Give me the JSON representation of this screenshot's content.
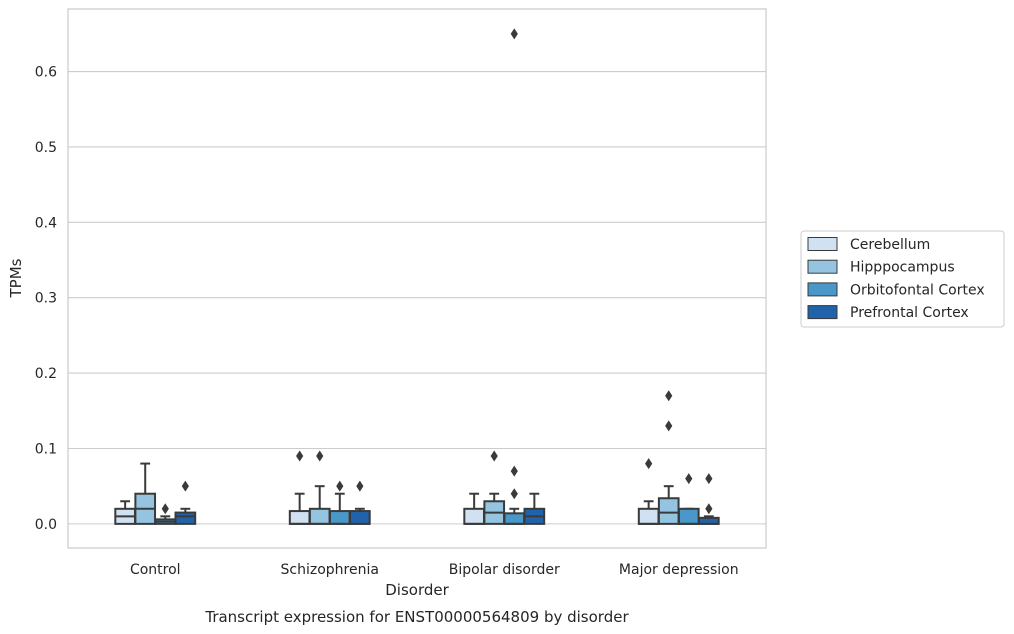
{
  "chart_data": {
    "type": "box",
    "xlabel": "Disorder",
    "ylabel": "TPMs",
    "caption": "Transcript expression for ENST00000564809 by disorder",
    "categories": [
      "Control",
      "Schizophrenia",
      "Bipolar disorder",
      "Major depression"
    ],
    "ylim": [
      -0.032,
      0.683
    ],
    "yticks": [
      0.0,
      0.1,
      0.2,
      0.3,
      0.4,
      0.5,
      0.6
    ],
    "ytick_labels": [
      "0.0",
      "0.1",
      "0.2",
      "0.3",
      "0.4",
      "0.5",
      "0.6"
    ],
    "grid": "horizontal",
    "legend_position": "right",
    "series": [
      {
        "name": "Cerebellum",
        "color": "#d0e1f2",
        "boxes": [
          {
            "q1": 0.0,
            "median": 0.01,
            "q3": 0.02,
            "whislo": 0.0,
            "whishi": 0.03,
            "fliers": []
          },
          {
            "q1": 0.0,
            "median": 0.0,
            "q3": 0.017,
            "whislo": 0.0,
            "whishi": 0.04,
            "fliers": [
              0.09
            ]
          },
          {
            "q1": 0.0,
            "median": 0.0,
            "q3": 0.02,
            "whislo": 0.0,
            "whishi": 0.04,
            "fliers": []
          },
          {
            "q1": 0.0,
            "median": 0.0,
            "q3": 0.02,
            "whislo": 0.0,
            "whishi": 0.03,
            "fliers": [
              0.08
            ]
          }
        ]
      },
      {
        "name": "Hipppocampus",
        "color": "#94c4df",
        "boxes": [
          {
            "q1": 0.0,
            "median": 0.02,
            "q3": 0.04,
            "whislo": 0.0,
            "whishi": 0.08,
            "fliers": []
          },
          {
            "q1": 0.0,
            "median": 0.0,
            "q3": 0.02,
            "whislo": 0.0,
            "whishi": 0.05,
            "fliers": [
              0.09
            ]
          },
          {
            "q1": 0.0,
            "median": 0.015,
            "q3": 0.03,
            "whislo": 0.0,
            "whishi": 0.04,
            "fliers": [
              0.09
            ]
          },
          {
            "q1": 0.0,
            "median": 0.015,
            "q3": 0.034,
            "whislo": 0.0,
            "whishi": 0.05,
            "fliers": [
              0.13,
              0.17
            ]
          }
        ]
      },
      {
        "name": "Orbitofontal Cortex",
        "color": "#4a98c9",
        "boxes": [
          {
            "q1": 0.0,
            "median": 0.003,
            "q3": 0.006,
            "whislo": 0.0,
            "whishi": 0.01,
            "fliers": [
              0.02
            ]
          },
          {
            "q1": 0.0,
            "median": 0.0,
            "q3": 0.017,
            "whislo": 0.0,
            "whishi": 0.04,
            "fliers": [
              0.05
            ]
          },
          {
            "q1": 0.0,
            "median": 0.0,
            "q3": 0.014,
            "whislo": 0.0,
            "whishi": 0.02,
            "fliers": [
              0.04,
              0.07,
              0.65
            ]
          },
          {
            "q1": 0.0,
            "median": 0.0,
            "q3": 0.02,
            "whislo": 0.0,
            "whishi": 0.02,
            "fliers": [
              0.06
            ]
          }
        ]
      },
      {
        "name": "Prefrontal Cortex",
        "color": "#2163aa",
        "boxes": [
          {
            "q1": 0.0,
            "median": 0.01,
            "q3": 0.015,
            "whislo": 0.0,
            "whishi": 0.02,
            "fliers": [
              0.05
            ]
          },
          {
            "q1": 0.0,
            "median": 0.0,
            "q3": 0.017,
            "whislo": 0.0,
            "whishi": 0.02,
            "fliers": [
              0.05
            ]
          },
          {
            "q1": 0.0,
            "median": 0.01,
            "q3": 0.02,
            "whislo": 0.0,
            "whishi": 0.04,
            "fliers": []
          },
          {
            "q1": 0.0,
            "median": 0.0,
            "q3": 0.008,
            "whislo": 0.0,
            "whishi": 0.01,
            "fliers": [
              0.02,
              0.06
            ]
          }
        ]
      }
    ]
  }
}
